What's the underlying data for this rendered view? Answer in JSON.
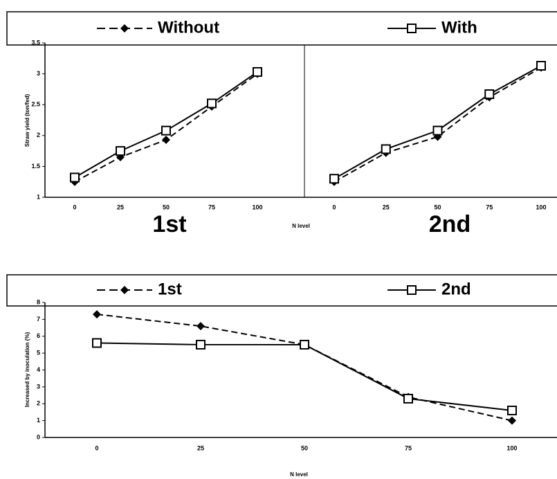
{
  "chart_data": [
    {
      "type": "line",
      "ylabel": "Straw yield (ton/fed)",
      "xlabel": "N level",
      "panels": [
        "1st",
        "2nd"
      ],
      "categories": [
        "0",
        "25",
        "50",
        "75",
        "100"
      ],
      "ylim": [
        1,
        3.5
      ],
      "yticks": [
        1,
        1.5,
        2,
        2.5,
        3,
        3.5
      ],
      "series": [
        {
          "name": "Without",
          "color": "#000000",
          "dashed": true,
          "marker": "diamond",
          "values": [
            [
              1.25,
              1.65,
              1.93,
              2.47,
              3.0
            ],
            [
              1.25,
              1.72,
              1.98,
              2.62,
              3.1
            ]
          ]
        },
        {
          "name": "With",
          "color": "#000000",
          "dashed": false,
          "marker": "square",
          "values": [
            [
              1.32,
              1.75,
              2.08,
              2.52,
              3.03
            ],
            [
              1.3,
              1.78,
              2.08,
              2.67,
              3.13
            ]
          ]
        }
      ]
    },
    {
      "type": "line",
      "ylabel": "Increased by inoculation (%)",
      "xlabel": "N level",
      "categories": [
        "0",
        "25",
        "50",
        "75",
        "100"
      ],
      "ylim": [
        0,
        8
      ],
      "yticks": [
        0,
        1,
        2,
        3,
        4,
        5,
        6,
        7,
        8
      ],
      "series": [
        {
          "name": "1st",
          "color": "#000000",
          "dashed": true,
          "marker": "diamond",
          "values": [
            7.3,
            6.6,
            5.5,
            2.4,
            1.0
          ]
        },
        {
          "name": "2nd",
          "color": "#000000",
          "dashed": false,
          "marker": "square",
          "values": [
            5.6,
            5.5,
            5.5,
            2.3,
            1.6
          ]
        }
      ]
    }
  ]
}
